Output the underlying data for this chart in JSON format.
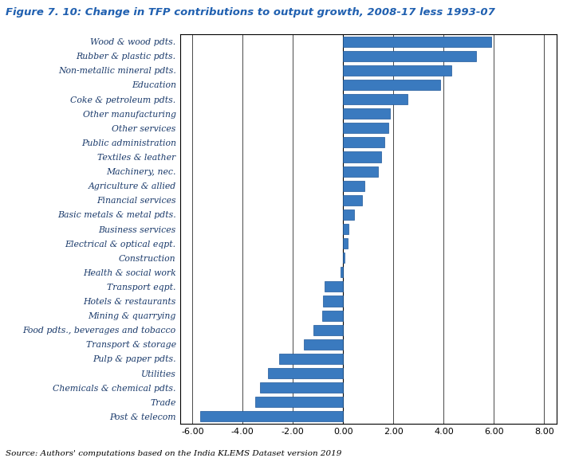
{
  "title": "Figure 7. 10: Change in TFP contributions to output growth, 2008-17 less 1993-07",
  "source": "Source: Authors' computations based on the India KLEMS Dataset version 2019",
  "categories": [
    "Wood & wood pdts.",
    "Rubber & plastic pdts.",
    "Non-metallic mineral pdts.",
    "Education",
    "Coke & petroleum pdts.",
    "Other manufacturing",
    "Other services",
    "Public administration",
    "Textiles & leather",
    "Machinery, nec.",
    "Agriculture & allied",
    "Financial services",
    "Basic metals & metal pdts.",
    "Business services",
    "Electrical & optical eqpt.",
    "Construction",
    "Health & social work",
    "Transport eqpt.",
    "Hotels & restaurants",
    "Mining & quarrying",
    "Food pdts., beverages and tobacco",
    "Transport & storage",
    "Pulp & paper pdts.",
    "Utilities",
    "Chemicals & chemical pdts.",
    "Trade",
    "Post & telecom"
  ],
  "values": [
    5.9,
    5.3,
    4.3,
    3.85,
    2.55,
    1.85,
    1.8,
    1.65,
    1.5,
    1.4,
    0.85,
    0.75,
    0.45,
    0.2,
    0.18,
    0.05,
    -0.1,
    -0.75,
    -0.8,
    -0.85,
    -1.2,
    -1.55,
    -2.55,
    -3.0,
    -3.3,
    -3.5,
    -5.7
  ],
  "bar_color": "#3a7abf",
  "bar_edge_color": "#1e5799",
  "xlim": [
    -6.5,
    8.5
  ],
  "xticks": [
    -6.0,
    -4.0,
    -2.0,
    0.0,
    2.0,
    4.0,
    6.0,
    8.0
  ],
  "title_color": "#2060b0",
  "label_color": "#1a3a6b",
  "source_color": "#000000",
  "background_color": "#ffffff",
  "grid_color": "#000000",
  "title_fontsize": 9.5,
  "label_fontsize": 7.8,
  "tick_fontsize": 8,
  "source_fontsize": 7.5,
  "bar_height": 0.72
}
